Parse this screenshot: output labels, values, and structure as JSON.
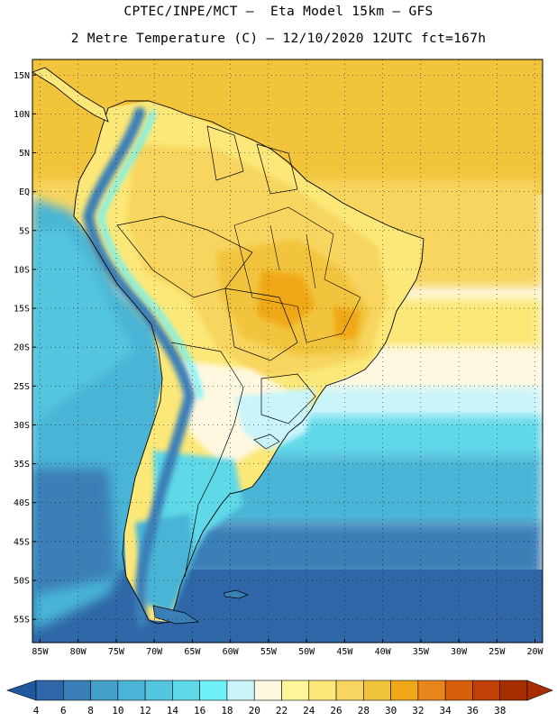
{
  "title": {
    "line1": "CPTEC/INPE/MCT –  Eta Model 15km – GFS",
    "line2": "2 Metre Temperature (C) – 12/10/2020 12UTC fct=167h"
  },
  "map": {
    "lon_range": [
      -86,
      -19
    ],
    "lat_range": [
      17,
      -58
    ],
    "lat_ticks": [
      {
        "lat": 15,
        "label": "15N"
      },
      {
        "lat": 10,
        "label": "10N"
      },
      {
        "lat": 5,
        "label": "5N"
      },
      {
        "lat": 0,
        "label": "EQ"
      },
      {
        "lat": -5,
        "label": "5S"
      },
      {
        "lat": -10,
        "label": "10S"
      },
      {
        "lat": -15,
        "label": "15S"
      },
      {
        "lat": -20,
        "label": "20S"
      },
      {
        "lat": -25,
        "label": "25S"
      },
      {
        "lat": -30,
        "label": "30S"
      },
      {
        "lat": -35,
        "label": "35S"
      },
      {
        "lat": -40,
        "label": "40S"
      },
      {
        "lat": -45,
        "label": "45S"
      },
      {
        "lat": -50,
        "label": "50S"
      },
      {
        "lat": -55,
        "label": "55S"
      }
    ],
    "lon_ticks": [
      {
        "lon": -85,
        "label": "85W"
      },
      {
        "lon": -80,
        "label": "80W"
      },
      {
        "lon": -75,
        "label": "75W"
      },
      {
        "lon": -70,
        "label": "70W"
      },
      {
        "lon": -65,
        "label": "65W"
      },
      {
        "lon": -60,
        "label": "60W"
      },
      {
        "lon": -55,
        "label": "55W"
      },
      {
        "lon": -50,
        "label": "50W"
      },
      {
        "lon": -45,
        "label": "45W"
      },
      {
        "lon": -40,
        "label": "40W"
      },
      {
        "lon": -35,
        "label": "35W"
      },
      {
        "lon": -30,
        "label": "30W"
      },
      {
        "lon": -25,
        "label": "25W"
      },
      {
        "lon": -20,
        "label": "20W"
      }
    ],
    "grid": true
  },
  "colorbar": {
    "levels": [
      "4",
      "6",
      "8",
      "10",
      "12",
      "14",
      "16",
      "18",
      "20",
      "22",
      "24",
      "26",
      "28",
      "30",
      "32",
      "34",
      "36",
      "38"
    ],
    "colors": [
      "#2f67a8",
      "#3a7fb8",
      "#45a0c8",
      "#4ab4d6",
      "#55c6e0",
      "#5ed8e8",
      "#6ef2f8",
      "#c8f4fa",
      "#fff8e0",
      "#fff69a",
      "#fbe878",
      "#f7d55e",
      "#f2c43c",
      "#f0a818",
      "#e8861c",
      "#d8600a",
      "#c04008",
      "#a82e00"
    ],
    "under_color": "#2058a0",
    "over_color": "#a82e00"
  },
  "colors": {
    "ocean_south": "#2f67a8",
    "ocean_mid": "#4ab4d6",
    "ocean_tropical": "#f2c43c",
    "andes": "#3a7fb8",
    "amazon": "#f7d55e",
    "hot_core": "#f0a818"
  }
}
